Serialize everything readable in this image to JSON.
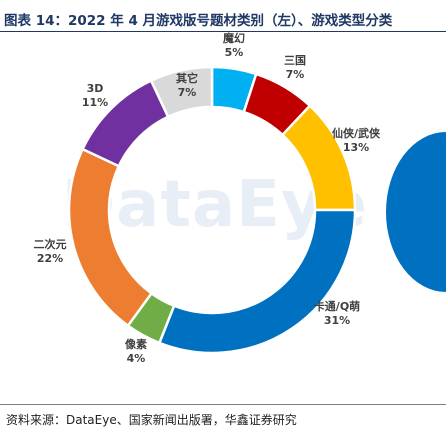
{
  "title": "图表 14：2022 年 4 月游戏版号题材类别（左）、游戏类型分类",
  "watermark": "DataEye",
  "source": "资料来源：DataEye、国家新闻出版署，华鑫证券研究",
  "chart_data": {
    "type": "pie",
    "donut": true,
    "slices": [
      {
        "name": "魔幻",
        "value": 5,
        "label": "5%",
        "color": "#00b0f0"
      },
      {
        "name": "三国",
        "value": 7,
        "label": "7%",
        "color": "#c00000"
      },
      {
        "name": "仙侠/武侠",
        "value": 13,
        "label": "13%",
        "color": "#ffc000"
      },
      {
        "name": "卡通/Q萌",
        "value": 31,
        "label": "31%",
        "color": "#0070c0"
      },
      {
        "name": "像素",
        "value": 4,
        "label": "4%",
        "color": "#70ad47"
      },
      {
        "name": "二次元",
        "value": 22,
        "label": "22%",
        "color": "#ed7d31"
      },
      {
        "name": "3D",
        "value": 11,
        "label": "11%",
        "color": "#7030a0"
      },
      {
        "name": "其它",
        "value": 7,
        "label": "7%",
        "color": "#d9d9d9"
      }
    ]
  }
}
